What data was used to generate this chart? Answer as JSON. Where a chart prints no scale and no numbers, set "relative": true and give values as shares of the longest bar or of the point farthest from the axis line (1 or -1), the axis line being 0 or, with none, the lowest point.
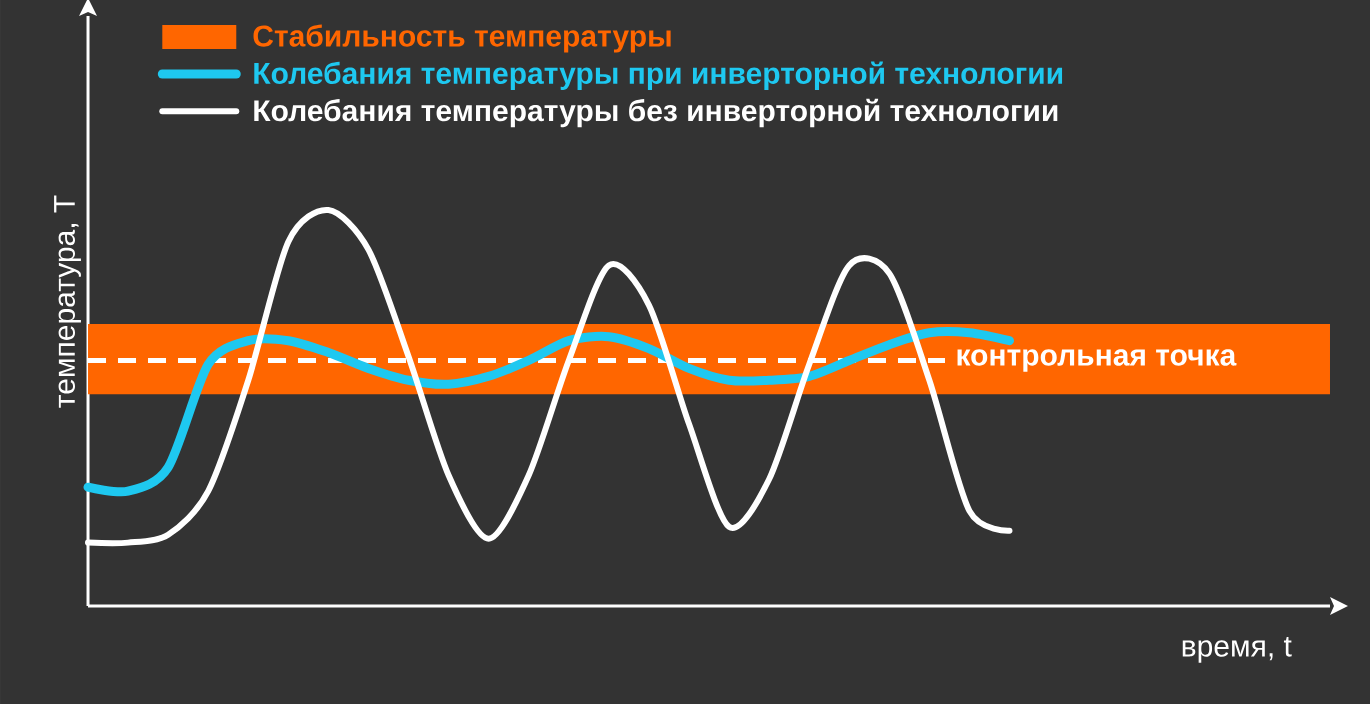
{
  "chart_data": {
    "type": "line",
    "relative": true,
    "ylabel": "температура, T",
    "xlabel": "время, t",
    "categories": [
      null,
      null,
      null,
      null,
      null,
      null,
      null,
      null,
      null,
      null,
      null,
      null,
      null,
      null,
      null,
      null,
      null,
      null,
      null,
      null,
      null,
      null,
      null,
      null,
      null,
      null,
      null,
      null,
      null,
      null,
      null,
      null
    ],
    "series": [
      {
        "name": "Колебания температуры при инверторной технологии",
        "color": "#1ec8f0",
        "values": [
          0.3,
          0.29,
          0.35,
          0.61,
          0.67,
          0.67,
          0.64,
          0.6,
          0.57,
          0.56,
          0.58,
          0.62,
          0.67,
          0.68,
          0.65,
          0.6,
          0.57,
          0.57,
          0.58,
          0.62,
          0.66,
          0.69,
          0.69,
          0.67,
          null,
          null,
          null,
          null,
          null,
          null,
          null,
          null
        ]
      },
      {
        "name": "Колебания температуры без инверторной технологии",
        "color": "#ffffff",
        "values": [
          0.16,
          0.16,
          0.18,
          0.29,
          0.57,
          0.92,
          1.0,
          0.9,
          0.63,
          0.33,
          0.17,
          0.33,
          0.62,
          0.86,
          0.76,
          0.46,
          0.2,
          0.32,
          0.61,
          0.86,
          0.84,
          0.57,
          0.24,
          0.19,
          null,
          null,
          null,
          null,
          null,
          null,
          null,
          null
        ]
      }
    ],
    "bands": [
      {
        "axis": "y",
        "from": 0.535,
        "to": 0.712,
        "label": "Стабильность температуры",
        "color": "#ff6600"
      }
    ],
    "ref_lines": [
      {
        "axis": "y",
        "value": 0.62,
        "label": "контрольная точка",
        "color": "#ffffff",
        "line_style": "dashed"
      }
    ],
    "legend": "top left",
    "marker": "none"
  }
}
